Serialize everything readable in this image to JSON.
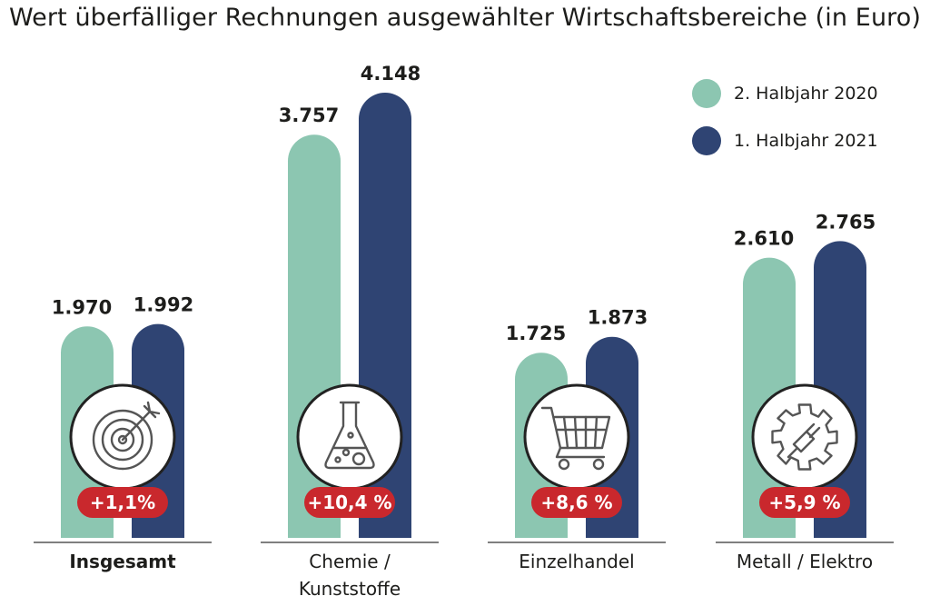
{
  "title": "Wert überfälliger Rechnungen ausgewählter Wirtschaftsbereiche (in Euro)",
  "colors": {
    "series1": "#8cc6b1",
    "series2": "#2f4473",
    "badge": "#c9282d",
    "axis": "#555555"
  },
  "legend": [
    {
      "label": "2. Halbjahr 2020",
      "color": "#8cc6b1"
    },
    {
      "label": "1. Halbjahr 2021",
      "color": "#2f4473"
    }
  ],
  "chart_data": {
    "type": "bar",
    "title": "Wert überfälliger Rechnungen ausgewählter Wirtschaftsbereiche (in Euro)",
    "categories": [
      "Insgesamt",
      "Chemie /\nKunststoffe",
      "Einzelhandel",
      "Metall / Elektro"
    ],
    "series": [
      {
        "name": "2. Halbjahr 2020",
        "values": [
          1970,
          3757,
          1725,
          2610
        ],
        "labels": [
          "1.970",
          "3.757",
          "1.725",
          "2.610"
        ]
      },
      {
        "name": "1. Halbjahr 2021",
        "values": [
          1992,
          4148,
          1873,
          2765
        ],
        "labels": [
          "1.992",
          "4.148",
          "1.873",
          "2.765"
        ]
      }
    ],
    "changes": [
      "+1,1%",
      "+10,4 %",
      "+8,6 %",
      "+5,9 %"
    ],
    "icons": [
      "target-icon",
      "flask-icon",
      "shopping-cart-icon",
      "gear-plug-icon"
    ],
    "bold_category": "Insgesamt",
    "ylim": [
      0,
      4400
    ],
    "grid": false,
    "legend_position": "top-right"
  }
}
